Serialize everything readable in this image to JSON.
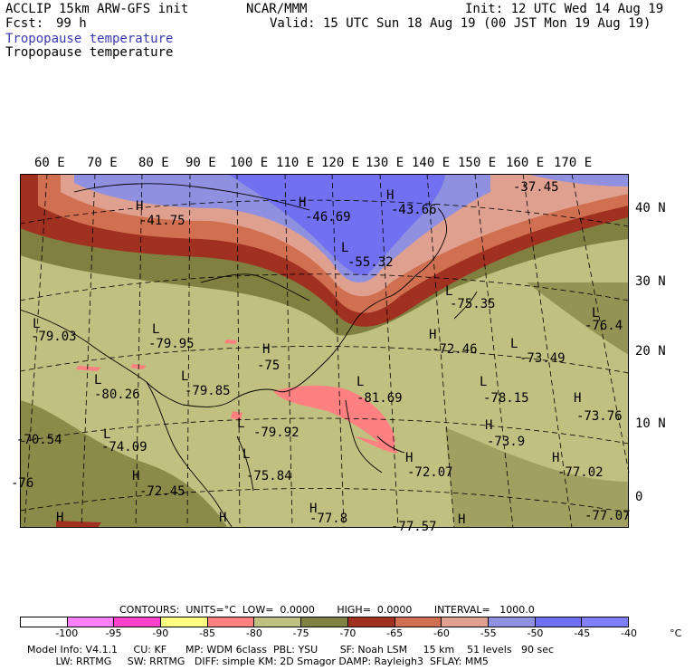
{
  "header": {
    "model": "ACCLIP 15km ARW-GFS init",
    "center": "NCAR/MMM",
    "init": "Init: 12 UTC Wed 14 Aug 19",
    "fcst_label": "Fcst:",
    "fcst_value": "99 h",
    "valid": "Valid: 15 UTC Sun 18 Aug 19 (00 JST Mon 19 Aug 19)",
    "field_title_blue": "Tropopause temperature",
    "field_title_black": "Tropopause temperature"
  },
  "axes": {
    "lon_labels": [
      "60 E",
      "70 E",
      "80 E",
      "90 E",
      "100 E",
      "110 E",
      "120 E",
      "130 E",
      "140 E",
      "150 E",
      "160 E",
      "170 E"
    ],
    "lat_labels": [
      "40 N",
      "30 N",
      "20 N",
      "10 N",
      "0"
    ]
  },
  "map_labels": [
    {
      "mark": "H",
      "value": "-41.75"
    },
    {
      "mark": "H",
      "value": "-46.69"
    },
    {
      "mark": "H",
      "value": "-43.66"
    },
    {
      "mark": "",
      "value": "-37.45"
    },
    {
      "mark": "L",
      "value": "-55.32"
    },
    {
      "mark": "L",
      "value": "-75.35"
    },
    {
      "mark": "L",
      "value": "-76.4"
    },
    {
      "mark": "L",
      "value": "-79.03"
    },
    {
      "mark": "L",
      "value": "-79.95"
    },
    {
      "mark": "H",
      "value": "-75"
    },
    {
      "mark": "H",
      "value": "-72.46"
    },
    {
      "mark": "L",
      "value": "-73.49"
    },
    {
      "mark": "L",
      "value": "-80.26"
    },
    {
      "mark": "L",
      "value": "-79.85"
    },
    {
      "mark": "L",
      "value": "-81.69"
    },
    {
      "mark": "L",
      "value": "-78.15"
    },
    {
      "mark": "H",
      "value": "-73.76"
    },
    {
      "mark": "L",
      "value": "-79.92"
    },
    {
      "mark": "H",
      "value": "-73.9"
    },
    {
      "mark": "",
      "value": "-70.54"
    },
    {
      "mark": "L",
      "value": "-74.09"
    },
    {
      "mark": "L",
      "value": "-75.84"
    },
    {
      "mark": "H",
      "value": "-72.07"
    },
    {
      "mark": "H",
      "value": "-77.02"
    },
    {
      "mark": "H",
      "value": "-72.45"
    },
    {
      "mark": "",
      "value": "-76"
    },
    {
      "mark": "H",
      "value": ""
    },
    {
      "mark": "H",
      "value": ""
    },
    {
      "mark": "H",
      "value": "-77.8"
    },
    {
      "mark": "",
      "value": "-77.57"
    },
    {
      "mark": "H",
      "value": ""
    },
    {
      "mark": "",
      "value": "-77.07"
    }
  ],
  "legend": {
    "contours_line": "CONTOURS:  UNITS=°C  LOW=  0.0000       HIGH=  0.0000       INTERVAL=   1000.0",
    "colors": [
      "#ffffff",
      "#ff80ff",
      "#ff40c8",
      "#ffff80",
      "#ff8080",
      "#c0c080",
      "#808040",
      "#a03020",
      "#d07050",
      "#e0a090",
      "#9090e0",
      "#7070f0",
      "#8080ff"
    ],
    "labels": [
      "-100",
      "-95",
      "-90",
      "-85",
      "-80",
      "-75",
      "-70",
      "-65",
      "-60",
      "-55",
      "-50",
      "-45",
      "-40",
      "°C"
    ],
    "units_label": "°C"
  },
  "footer": {
    "line1": "Model Info: V4.1.1     CU: KF      MP: WDM 6class  PBL: YSU       SF: Noah LSM     15 km    51 levels   90 sec",
    "line2": "         LW: RRTMG     SW: RRTMG   DIFF: simple KM: 2D Smagor DAMP: Rayleigh3  SFLAY: MM5"
  },
  "colors": {
    "bg_olive_light": "#c0c080",
    "olive_dark": "#808040",
    "red_dark": "#a03020",
    "orange": "#d07050",
    "salmon": "#e0a090",
    "lavender": "#9090e0",
    "blue": "#7070f0",
    "pink": "#ff8080"
  }
}
